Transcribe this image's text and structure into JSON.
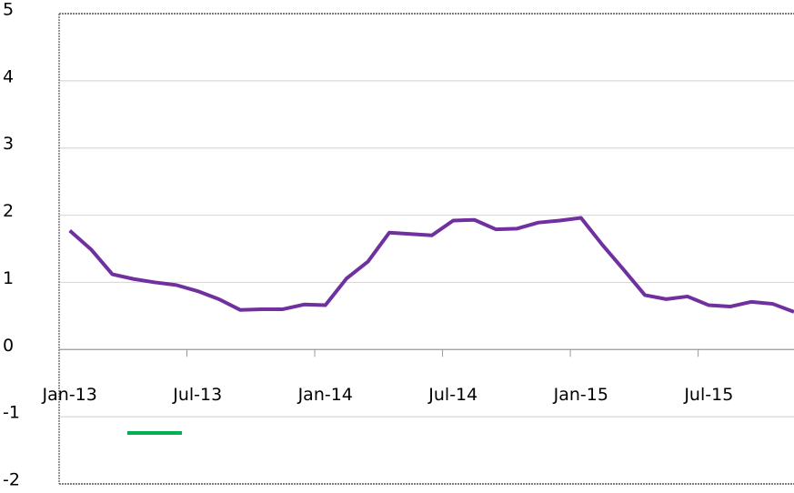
{
  "chart_data": {
    "type": "line",
    "categories": [
      "Jan-13",
      null,
      null,
      null,
      null,
      null,
      "Jul-13",
      null,
      null,
      null,
      null,
      null,
      "Jan-14",
      null,
      null,
      null,
      null,
      null,
      "Jul-14",
      null,
      null,
      null,
      null,
      null,
      "Jan-15",
      null,
      null,
      null,
      null,
      null,
      "Jul-15",
      null,
      null,
      null,
      null
    ],
    "series": [
      {
        "color": "#7030a0",
        "values": [
          1.77,
          1.49,
          1.12,
          1.05,
          1.0,
          0.96,
          0.87,
          0.75,
          0.59,
          0.6,
          0.6,
          0.67,
          0.66,
          1.06,
          1.31,
          1.74,
          1.72,
          1.7,
          1.92,
          1.93,
          1.79,
          1.8,
          1.89,
          1.92,
          1.96,
          1.56,
          1.19,
          0.81,
          0.75,
          0.79,
          0.66,
          0.64,
          0.71,
          0.68,
          0.56
        ]
      }
    ],
    "ylim": [
      -2,
      5
    ],
    "yticks": [
      -2,
      -1,
      0,
      1,
      2,
      3,
      4,
      5
    ],
    "grid": true
  }
}
